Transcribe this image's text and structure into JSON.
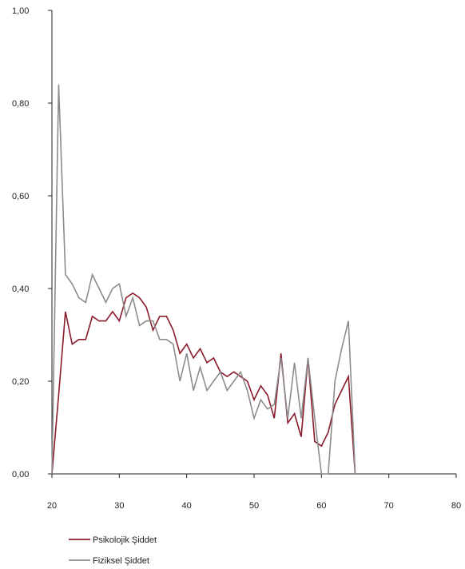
{
  "chart_data": {
    "type": "line",
    "title": "",
    "xlabel": "",
    "ylabel": "",
    "xlim": [
      20,
      80
    ],
    "ylim": [
      0,
      1
    ],
    "x_ticks": [
      {
        "value": 20,
        "label": "20"
      },
      {
        "value": 30,
        "label": "30"
      },
      {
        "value": 40,
        "label": "40"
      },
      {
        "value": 50,
        "label": "50"
      },
      {
        "value": 60,
        "label": "60"
      },
      {
        "value": 70,
        "label": "70"
      },
      {
        "value": 80,
        "label": "80"
      }
    ],
    "y_ticks": [
      {
        "value": 0.0,
        "label": "0,00"
      },
      {
        "value": 0.2,
        "label": "0,20"
      },
      {
        "value": 0.4,
        "label": "0,40"
      },
      {
        "value": 0.6,
        "label": "0,60"
      },
      {
        "value": 0.8,
        "label": "0,80"
      },
      {
        "value": 1.0,
        "label": "1,00"
      }
    ],
    "grid": false,
    "legend_position": "bottom-left",
    "series": [
      {
        "name": "Psikolojik Şiddet",
        "color": "#8b1a2b",
        "points": [
          [
            20,
            0.0
          ],
          [
            21,
            0.17
          ],
          [
            22,
            0.35
          ],
          [
            23,
            0.28
          ],
          [
            24,
            0.29
          ],
          [
            25,
            0.29
          ],
          [
            26,
            0.34
          ],
          [
            27,
            0.33
          ],
          [
            28,
            0.33
          ],
          [
            29,
            0.35
          ],
          [
            30,
            0.33
          ],
          [
            31,
            0.38
          ],
          [
            32,
            0.39
          ],
          [
            33,
            0.38
          ],
          [
            34,
            0.36
          ],
          [
            35,
            0.31
          ],
          [
            36,
            0.34
          ],
          [
            37,
            0.34
          ],
          [
            38,
            0.31
          ],
          [
            39,
            0.26
          ],
          [
            40,
            0.28
          ],
          [
            41,
            0.25
          ],
          [
            42,
            0.27
          ],
          [
            43,
            0.24
          ],
          [
            44,
            0.25
          ],
          [
            45,
            0.22
          ],
          [
            46,
            0.21
          ],
          [
            47,
            0.22
          ],
          [
            48,
            0.21
          ],
          [
            49,
            0.2
          ],
          [
            50,
            0.16
          ],
          [
            51,
            0.19
          ],
          [
            52,
            0.17
          ],
          [
            53,
            0.12
          ],
          [
            54,
            0.26
          ],
          [
            55,
            0.11
          ],
          [
            56,
            0.13
          ],
          [
            57,
            0.08
          ],
          [
            58,
            0.25
          ],
          [
            59,
            0.07
          ],
          [
            60,
            0.06
          ],
          [
            61,
            0.09
          ],
          [
            62,
            0.15
          ],
          [
            63,
            0.18
          ],
          [
            64,
            0.21
          ],
          [
            65,
            0.0
          ]
        ]
      },
      {
        "name": "Fiziksel Şiddet",
        "color": "#8c8c8c",
        "points": [
          [
            20,
            0.0
          ],
          [
            21,
            0.84
          ],
          [
            22,
            0.43
          ],
          [
            23,
            0.41
          ],
          [
            24,
            0.38
          ],
          [
            25,
            0.37
          ],
          [
            26,
            0.43
          ],
          [
            27,
            0.4
          ],
          [
            28,
            0.37
          ],
          [
            29,
            0.4
          ],
          [
            30,
            0.41
          ],
          [
            31,
            0.34
          ],
          [
            32,
            0.38
          ],
          [
            33,
            0.32
          ],
          [
            34,
            0.33
          ],
          [
            35,
            0.33
          ],
          [
            36,
            0.29
          ],
          [
            37,
            0.29
          ],
          [
            38,
            0.28
          ],
          [
            39,
            0.2
          ],
          [
            40,
            0.26
          ],
          [
            41,
            0.18
          ],
          [
            42,
            0.23
          ],
          [
            43,
            0.18
          ],
          [
            44,
            0.2
          ],
          [
            45,
            0.22
          ],
          [
            46,
            0.18
          ],
          [
            47,
            0.2
          ],
          [
            48,
            0.22
          ],
          [
            49,
            0.18
          ],
          [
            50,
            0.12
          ],
          [
            51,
            0.16
          ],
          [
            52,
            0.14
          ],
          [
            53,
            0.15
          ],
          [
            54,
            0.25
          ],
          [
            55,
            0.12
          ],
          [
            56,
            0.24
          ],
          [
            57,
            0.12
          ],
          [
            58,
            0.25
          ],
          [
            59,
            0.12
          ],
          [
            60,
            0.0
          ],
          [
            61,
            0.0
          ],
          [
            62,
            0.2
          ],
          [
            63,
            0.27
          ],
          [
            64,
            0.33
          ],
          [
            65,
            0.0
          ]
        ]
      }
    ]
  }
}
